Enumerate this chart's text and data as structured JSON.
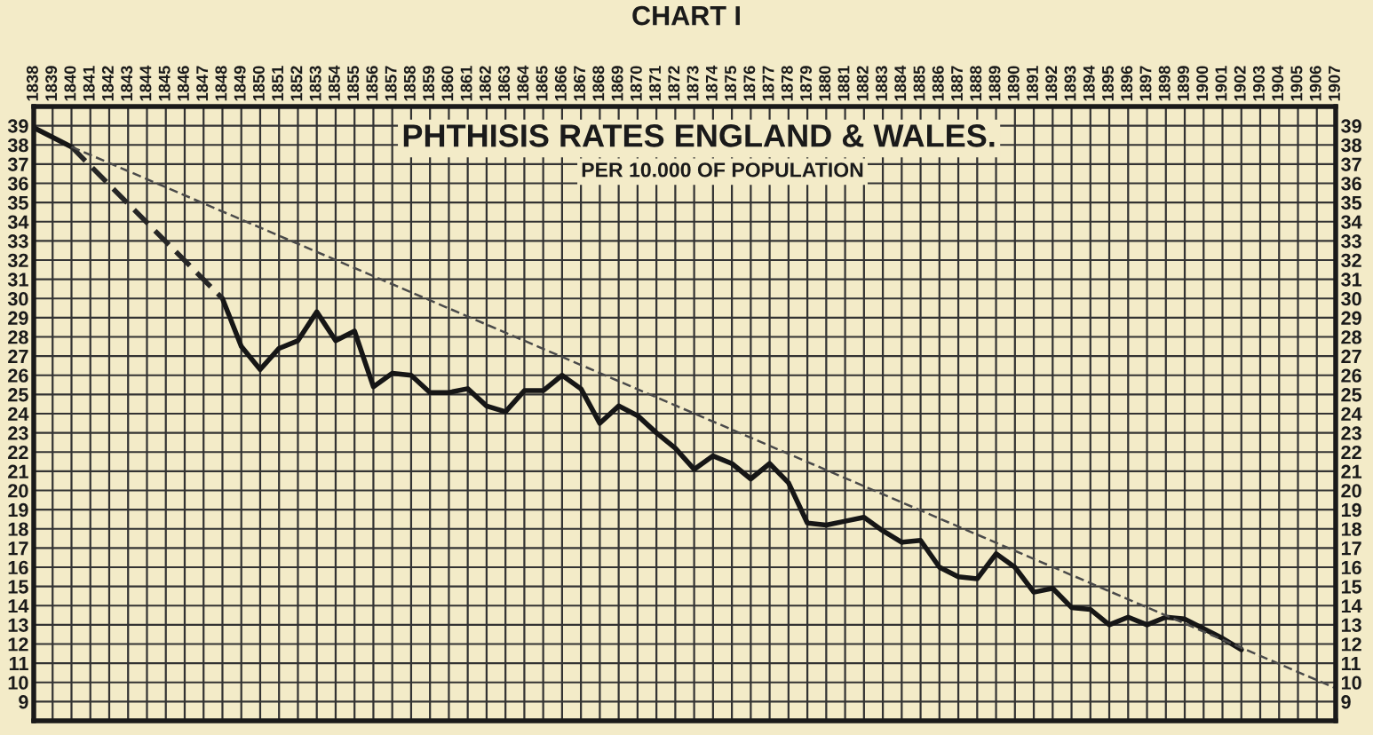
{
  "chart_data": {
    "type": "line",
    "title": "PHTHISIS RATES ENGLAND & WALES.",
    "subtitle": "PER 10.000 OF POPULATION",
    "annotations": [
      "CHART I"
    ],
    "xlim": [
      1838,
      1907
    ],
    "xticks": [
      1838,
      1839,
      1840,
      1841,
      1842,
      1843,
      1844,
      1845,
      1846,
      1847,
      1848,
      1849,
      1850,
      1851,
      1852,
      1853,
      1854,
      1855,
      1856,
      1857,
      1858,
      1859,
      1860,
      1861,
      1862,
      1863,
      1864,
      1865,
      1866,
      1867,
      1868,
      1869,
      1870,
      1871,
      1872,
      1873,
      1874,
      1875,
      1876,
      1877,
      1878,
      1879,
      1880,
      1881,
      1882,
      1883,
      1884,
      1885,
      1886,
      1887,
      1888,
      1889,
      1890,
      1891,
      1892,
      1893,
      1894,
      1895,
      1896,
      1897,
      1898,
      1899,
      1900,
      1901,
      1902,
      1903,
      1904,
      1905,
      1906,
      1907
    ],
    "ylim": [
      8,
      40
    ],
    "yticks": [
      9,
      10,
      11,
      12,
      13,
      14,
      15,
      16,
      17,
      18,
      19,
      20,
      21,
      22,
      23,
      24,
      25,
      26,
      27,
      28,
      29,
      30,
      31,
      32,
      33,
      34,
      35,
      36,
      37,
      38,
      39
    ],
    "y2lim": [
      8,
      40
    ],
    "y2ticks": [
      9,
      10,
      11,
      12,
      13,
      14,
      15,
      16,
      17,
      18,
      19,
      20,
      21,
      22,
      23,
      24,
      25,
      26,
      27,
      28,
      29,
      30,
      31,
      32,
      33,
      34,
      35,
      36,
      37,
      38,
      39
    ],
    "grid": true,
    "series": [
      {
        "color": "#161616",
        "line_style": "solid",
        "x": [
          1838,
          1840,
          1841,
          1848,
          1849,
          1850,
          1851,
          1852,
          1853,
          1854,
          1855,
          1856,
          1857,
          1858,
          1859,
          1860,
          1861,
          1862,
          1863,
          1864,
          1865,
          1866,
          1867,
          1868,
          1869,
          1870,
          1871,
          1872,
          1873,
          1874,
          1875,
          1876,
          1877,
          1878,
          1879,
          1880,
          1881,
          1882,
          1883,
          1884,
          1885,
          1886,
          1887,
          1888,
          1889,
          1890,
          1891,
          1892,
          1893,
          1894,
          1895,
          1896,
          1897,
          1898,
          1899,
          1900,
          1901,
          1902
        ],
        "values": [
          38.9,
          37.9,
          null,
          30.0,
          27.5,
          26.3,
          27.4,
          27.8,
          29.3,
          27.8,
          28.3,
          25.4,
          26.1,
          26.0,
          25.1,
          25.1,
          25.3,
          24.4,
          24.1,
          25.2,
          25.2,
          26.0,
          25.3,
          23.5,
          24.4,
          23.9,
          23.0,
          22.2,
          21.1,
          21.8,
          21.4,
          20.6,
          21.4,
          20.4,
          18.3,
          18.2,
          18.4,
          18.6,
          17.9,
          17.3,
          17.4,
          16.0,
          15.5,
          15.4,
          16.7,
          16.0,
          14.7,
          14.9,
          13.9,
          13.8,
          13.0,
          13.4,
          13.0,
          13.4,
          13.3,
          12.8,
          12.3,
          11.7
        ]
      },
      {
        "color": "#262626",
        "line_style": "dashed",
        "x": [
          1840,
          1848
        ],
        "values": [
          37.9,
          30.0
        ]
      },
      {
        "color": "#4a4a4a",
        "line_style": "dashed",
        "x": [
          1840,
          1907
        ],
        "values": [
          37.9,
          9.7
        ]
      }
    ]
  }
}
